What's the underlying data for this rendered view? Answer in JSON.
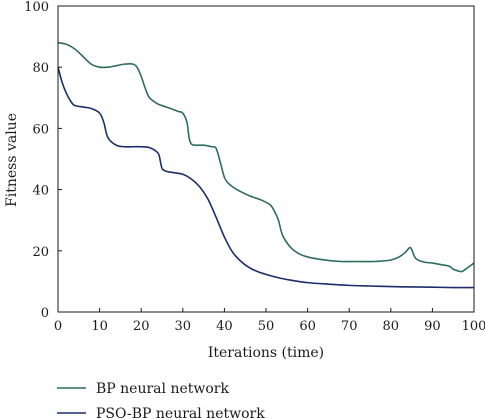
{
  "chart_data": {
    "type": "line",
    "xlabel": "Iterations (time)",
    "ylabel": "Fitness value",
    "xlim": [
      0,
      100
    ],
    "ylim": [
      0,
      100
    ],
    "x_ticks": [
      "0",
      "10",
      "20",
      "30",
      "40",
      "50",
      "60",
      "70",
      "80",
      "90",
      "100"
    ],
    "y_ticks": [
      "0",
      "20",
      "40",
      "60",
      "80",
      "100"
    ],
    "grid": false,
    "legend_position": "bottom-left",
    "series": [
      {
        "name": "BP neural network",
        "color": "#2e6e58",
        "x": [
          0,
          2,
          4,
          6,
          8,
          10,
          12,
          14,
          16,
          18,
          19,
          20,
          21,
          22,
          24,
          26,
          28,
          29,
          30,
          31,
          31.5,
          32,
          33,
          35,
          37,
          38,
          39,
          40,
          41,
          43,
          46,
          49,
          51,
          52,
          53,
          54,
          56,
          58,
          60,
          64,
          68,
          72,
          76,
          80,
          82,
          83.5,
          84.5,
          85,
          86,
          88,
          90,
          92,
          94,
          95,
          96,
          97,
          98,
          99,
          100
        ],
        "y": [
          88,
          87.5,
          86,
          83.5,
          81,
          80,
          80,
          80.5,
          81,
          81,
          80,
          77,
          73,
          70,
          68,
          67,
          66,
          65.5,
          65,
          62,
          57,
          55,
          54.5,
          54.5,
          54,
          53.5,
          49,
          44,
          42,
          40,
          38,
          36.5,
          35,
          33,
          30,
          25,
          21,
          19,
          18,
          17,
          16.5,
          16.5,
          16.5,
          17,
          18,
          19.5,
          21,
          20.5,
          17.5,
          16.3,
          16,
          15.5,
          15,
          14,
          13.5,
          13.2,
          14,
          15,
          16
        ]
      },
      {
        "name": "PSO-BP neural network",
        "color": "#1b2d6b",
        "x": [
          0,
          1,
          2,
          3,
          4,
          6,
          8,
          10,
          11,
          12,
          14,
          16,
          18,
          20,
          22,
          24,
          24.5,
          25,
          26,
          28,
          30,
          32,
          34,
          36,
          38,
          40,
          42,
          44,
          46,
          48,
          50,
          53,
          56,
          60,
          65,
          70,
          75,
          80,
          85,
          90,
          95,
          100
        ],
        "y": [
          80,
          75,
          71.5,
          69,
          67.5,
          67,
          66.5,
          65,
          62,
          57,
          54.5,
          54,
          54,
          54,
          53.7,
          52,
          50,
          47,
          46,
          45.5,
          45,
          43.5,
          41,
          37,
          31,
          24.5,
          19.5,
          16.5,
          14.5,
          13.2,
          12.3,
          11.2,
          10.4,
          9.6,
          9.1,
          8.7,
          8.5,
          8.3,
          8.2,
          8.1,
          8.0,
          8.0
        ]
      }
    ]
  }
}
